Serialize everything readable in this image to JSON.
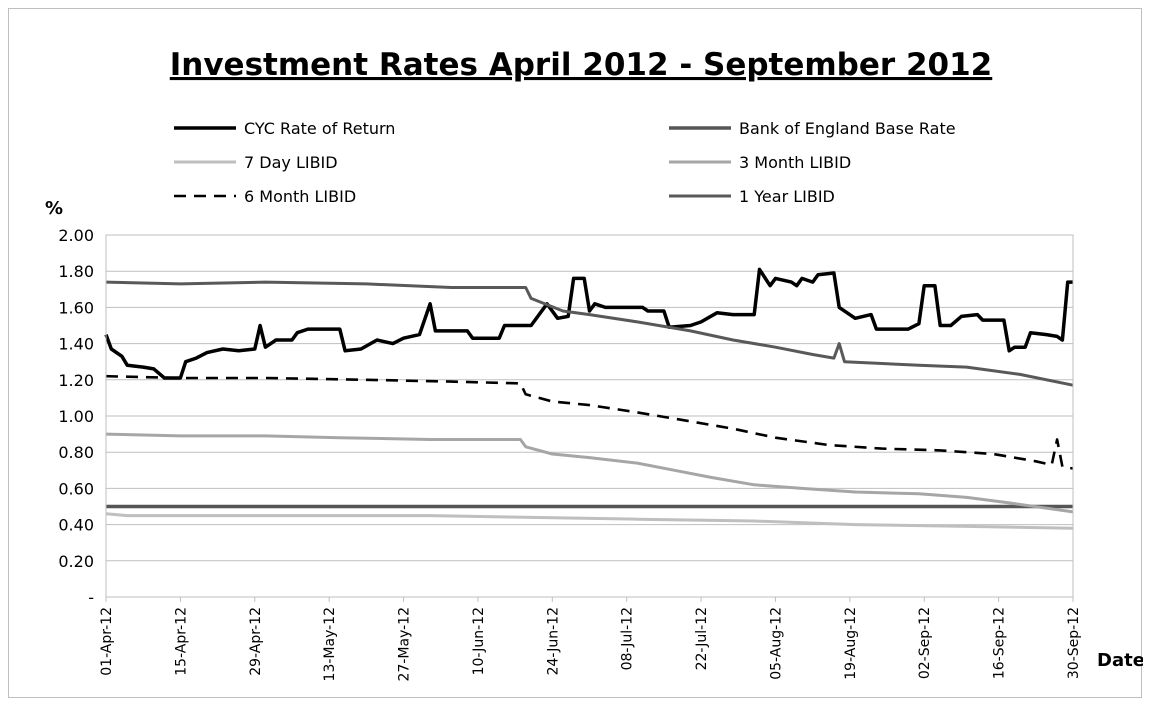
{
  "chart_data": {
    "type": "line",
    "title": "Investment Rates April 2012 - September 2012",
    "ylabel": "%",
    "xlabel": "Date",
    "ylim": [
      0,
      2.0
    ],
    "y_ticks": [
      "-",
      "0.20",
      "0.40",
      "0.60",
      "0.80",
      "1.00",
      "1.20",
      "1.40",
      "1.60",
      "1.80",
      "2.00"
    ],
    "x_ticks": [
      "01-Apr-12",
      "15-Apr-12",
      "29-Apr-12",
      "13-May-12",
      "27-May-12",
      "10-Jun-12",
      "24-Jun-12",
      "08-Jul-12",
      "22-Jul-12",
      "05-Aug-12",
      "19-Aug-12",
      "02-Sep-12",
      "16-Sep-12",
      "30-Sep-12"
    ],
    "x_range": [
      "2012-04-01",
      "2012-09-30"
    ],
    "grid": true,
    "legend_position": "top",
    "series": [
      {
        "name": "CYC Rate of Return",
        "color": "#000000",
        "style": "solid-thick",
        "points": [
          [
            "2012-04-01",
            1.45
          ],
          [
            "2012-04-02",
            1.37
          ],
          [
            "2012-04-04",
            1.33
          ],
          [
            "2012-04-05",
            1.28
          ],
          [
            "2012-04-08",
            1.27
          ],
          [
            "2012-04-10",
            1.26
          ],
          [
            "2012-04-12",
            1.21
          ],
          [
            "2012-04-15",
            1.21
          ],
          [
            "2012-04-16",
            1.3
          ],
          [
            "2012-04-18",
            1.32
          ],
          [
            "2012-04-20",
            1.35
          ],
          [
            "2012-04-23",
            1.37
          ],
          [
            "2012-04-26",
            1.36
          ],
          [
            "2012-04-29",
            1.37
          ],
          [
            "2012-04-30",
            1.5
          ],
          [
            "2012-05-01",
            1.38
          ],
          [
            "2012-05-03",
            1.42
          ],
          [
            "2012-05-06",
            1.42
          ],
          [
            "2012-05-07",
            1.46
          ],
          [
            "2012-05-09",
            1.48
          ],
          [
            "2012-05-15",
            1.48
          ],
          [
            "2012-05-16",
            1.36
          ],
          [
            "2012-05-19",
            1.37
          ],
          [
            "2012-05-22",
            1.42
          ],
          [
            "2012-05-25",
            1.4
          ],
          [
            "2012-05-27",
            1.43
          ],
          [
            "2012-05-30",
            1.45
          ],
          [
            "2012-06-01",
            1.62
          ],
          [
            "2012-06-02",
            1.47
          ],
          [
            "2012-06-08",
            1.47
          ],
          [
            "2012-06-09",
            1.43
          ],
          [
            "2012-06-14",
            1.43
          ],
          [
            "2012-06-15",
            1.5
          ],
          [
            "2012-06-20",
            1.5
          ],
          [
            "2012-06-23",
            1.62
          ],
          [
            "2012-06-25",
            1.54
          ],
          [
            "2012-06-27",
            1.55
          ],
          [
            "2012-06-28",
            1.76
          ],
          [
            "2012-06-30",
            1.76
          ],
          [
            "2012-07-01",
            1.58
          ],
          [
            "2012-07-02",
            1.62
          ],
          [
            "2012-07-04",
            1.6
          ],
          [
            "2012-07-11",
            1.6
          ],
          [
            "2012-07-12",
            1.58
          ],
          [
            "2012-07-15",
            1.58
          ],
          [
            "2012-07-16",
            1.49
          ],
          [
            "2012-07-20",
            1.5
          ],
          [
            "2012-07-22",
            1.52
          ],
          [
            "2012-07-25",
            1.57
          ],
          [
            "2012-07-28",
            1.56
          ],
          [
            "2012-08-01",
            1.56
          ],
          [
            "2012-08-02",
            1.81
          ],
          [
            "2012-08-04",
            1.72
          ],
          [
            "2012-08-05",
            1.76
          ],
          [
            "2012-08-08",
            1.74
          ],
          [
            "2012-08-09",
            1.72
          ],
          [
            "2012-08-10",
            1.76
          ],
          [
            "2012-08-12",
            1.74
          ],
          [
            "2012-08-13",
            1.78
          ],
          [
            "2012-08-16",
            1.79
          ],
          [
            "2012-08-17",
            1.6
          ],
          [
            "2012-08-20",
            1.54
          ],
          [
            "2012-08-23",
            1.56
          ],
          [
            "2012-08-24",
            1.48
          ],
          [
            "2012-08-30",
            1.48
          ],
          [
            "2012-09-01",
            1.51
          ],
          [
            "2012-09-02",
            1.72
          ],
          [
            "2012-09-04",
            1.72
          ],
          [
            "2012-09-05",
            1.5
          ],
          [
            "2012-09-07",
            1.5
          ],
          [
            "2012-09-09",
            1.55
          ],
          [
            "2012-09-12",
            1.56
          ],
          [
            "2012-09-13",
            1.53
          ],
          [
            "2012-09-17",
            1.53
          ],
          [
            "2012-09-18",
            1.36
          ],
          [
            "2012-09-19",
            1.38
          ],
          [
            "2012-09-21",
            1.38
          ],
          [
            "2012-09-22",
            1.46
          ],
          [
            "2012-09-25",
            1.45
          ],
          [
            "2012-09-27",
            1.44
          ],
          [
            "2012-09-28",
            1.42
          ],
          [
            "2012-09-29",
            1.74
          ],
          [
            "2012-09-30",
            1.74
          ]
        ]
      },
      {
        "name": "Bank of England Base Rate",
        "color": "#555555",
        "style": "solid-thick",
        "points": [
          [
            "2012-04-01",
            0.5
          ],
          [
            "2012-09-30",
            0.5
          ]
        ]
      },
      {
        "name": "7 Day LIBID",
        "color": "#bfbfbf",
        "style": "solid",
        "points": [
          [
            "2012-04-01",
            0.46
          ],
          [
            "2012-04-05",
            0.45
          ],
          [
            "2012-05-01",
            0.45
          ],
          [
            "2012-06-01",
            0.45
          ],
          [
            "2012-06-20",
            0.44
          ],
          [
            "2012-07-10",
            0.43
          ],
          [
            "2012-08-01",
            0.42
          ],
          [
            "2012-08-20",
            0.4
          ],
          [
            "2012-09-10",
            0.39
          ],
          [
            "2012-09-30",
            0.38
          ]
        ]
      },
      {
        "name": "3 Month LIBID",
        "color": "#a6a6a6",
        "style": "solid",
        "points": [
          [
            "2012-04-01",
            0.9
          ],
          [
            "2012-04-15",
            0.89
          ],
          [
            "2012-05-01",
            0.89
          ],
          [
            "2012-05-15",
            0.88
          ],
          [
            "2012-06-01",
            0.87
          ],
          [
            "2012-06-18",
            0.87
          ],
          [
            "2012-06-19",
            0.83
          ],
          [
            "2012-06-24",
            0.79
          ],
          [
            "2012-07-01",
            0.77
          ],
          [
            "2012-07-10",
            0.74
          ],
          [
            "2012-07-17",
            0.7
          ],
          [
            "2012-07-24",
            0.66
          ],
          [
            "2012-08-01",
            0.62
          ],
          [
            "2012-08-10",
            0.6
          ],
          [
            "2012-08-20",
            0.58
          ],
          [
            "2012-09-01",
            0.57
          ],
          [
            "2012-09-10",
            0.55
          ],
          [
            "2012-09-18",
            0.52
          ],
          [
            "2012-09-30",
            0.47
          ]
        ]
      },
      {
        "name": "6 Month LIBID",
        "color": "#000000",
        "style": "dashed",
        "points": [
          [
            "2012-04-01",
            1.22
          ],
          [
            "2012-04-15",
            1.21
          ],
          [
            "2012-05-01",
            1.21
          ],
          [
            "2012-05-20",
            1.2
          ],
          [
            "2012-06-05",
            1.19
          ],
          [
            "2012-06-18",
            1.18
          ],
          [
            "2012-06-19",
            1.12
          ],
          [
            "2012-06-24",
            1.08
          ],
          [
            "2012-07-01",
            1.06
          ],
          [
            "2012-07-10",
            1.02
          ],
          [
            "2012-07-20",
            0.97
          ],
          [
            "2012-07-28",
            0.93
          ],
          [
            "2012-08-05",
            0.88
          ],
          [
            "2012-08-15",
            0.84
          ],
          [
            "2012-08-25",
            0.82
          ],
          [
            "2012-09-05",
            0.81
          ],
          [
            "2012-09-15",
            0.79
          ],
          [
            "2012-09-23",
            0.75
          ],
          [
            "2012-09-26",
            0.73
          ],
          [
            "2012-09-27",
            0.87
          ],
          [
            "2012-09-28",
            0.72
          ],
          [
            "2012-09-30",
            0.71
          ]
        ]
      },
      {
        "name": "1 Year LIBID",
        "color": "#595959",
        "style": "solid",
        "points": [
          [
            "2012-04-01",
            1.74
          ],
          [
            "2012-04-15",
            1.73
          ],
          [
            "2012-05-01",
            1.74
          ],
          [
            "2012-05-20",
            1.73
          ],
          [
            "2012-06-05",
            1.71
          ],
          [
            "2012-06-19",
            1.71
          ],
          [
            "2012-06-20",
            1.65
          ],
          [
            "2012-06-26",
            1.58
          ],
          [
            "2012-07-01",
            1.56
          ],
          [
            "2012-07-10",
            1.52
          ],
          [
            "2012-07-20",
            1.47
          ],
          [
            "2012-07-28",
            1.42
          ],
          [
            "2012-08-05",
            1.38
          ],
          [
            "2012-08-12",
            1.34
          ],
          [
            "2012-08-16",
            1.32
          ],
          [
            "2012-08-17",
            1.4
          ],
          [
            "2012-08-18",
            1.3
          ],
          [
            "2012-09-01",
            1.28
          ],
          [
            "2012-09-10",
            1.27
          ],
          [
            "2012-09-20",
            1.23
          ],
          [
            "2012-09-30",
            1.17
          ]
        ]
      }
    ]
  }
}
